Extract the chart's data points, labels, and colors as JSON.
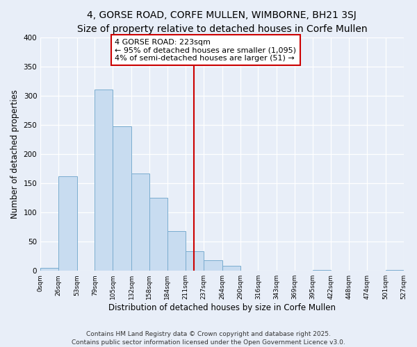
{
  "title": "4, GORSE ROAD, CORFE MULLEN, WIMBORNE, BH21 3SJ",
  "subtitle": "Size of property relative to detached houses in Corfe Mullen",
  "xlabel": "Distribution of detached houses by size in Corfe Mullen",
  "ylabel": "Number of detached properties",
  "bin_edges": [
    0,
    26,
    53,
    79,
    105,
    132,
    158,
    184,
    211,
    237,
    264,
    290,
    316,
    343,
    369,
    395,
    422,
    448,
    474,
    501,
    527
  ],
  "bar_heights": [
    5,
    162,
    0,
    311,
    248,
    167,
    125,
    68,
    33,
    18,
    9,
    0,
    0,
    0,
    0,
    1,
    0,
    0,
    0,
    2
  ],
  "bar_color": "#c8dcf0",
  "bar_edge_color": "#7aaccf",
  "vline_x": 223,
  "vline_color": "#cc0000",
  "annotation_text": "4 GORSE ROAD: 223sqm\n← 95% of detached houses are smaller (1,095)\n4% of semi-detached houses are larger (51) →",
  "annotation_box_color": "#ffffff",
  "annotation_box_edge": "#cc0000",
  "ylim": [
    0,
    400
  ],
  "yticks": [
    0,
    50,
    100,
    150,
    200,
    250,
    300,
    350,
    400
  ],
  "tick_labels": [
    "0sqm",
    "26sqm",
    "53sqm",
    "79sqm",
    "105sqm",
    "132sqm",
    "158sqm",
    "184sqm",
    "211sqm",
    "237sqm",
    "264sqm",
    "290sqm",
    "316sqm",
    "343sqm",
    "369sqm",
    "395sqm",
    "422sqm",
    "448sqm",
    "474sqm",
    "501sqm",
    "527sqm"
  ],
  "footer_line1": "Contains HM Land Registry data © Crown copyright and database right 2025.",
  "footer_line2": "Contains public sector information licensed under the Open Government Licence v3.0.",
  "background_color": "#e8eef8",
  "grid_color": "#ffffff",
  "title_fontsize": 10,
  "xlabel_fontsize": 8.5,
  "ylabel_fontsize": 8.5,
  "footer_fontsize": 6.5,
  "tick_fontsize": 6.5,
  "annot_fontsize": 8
}
